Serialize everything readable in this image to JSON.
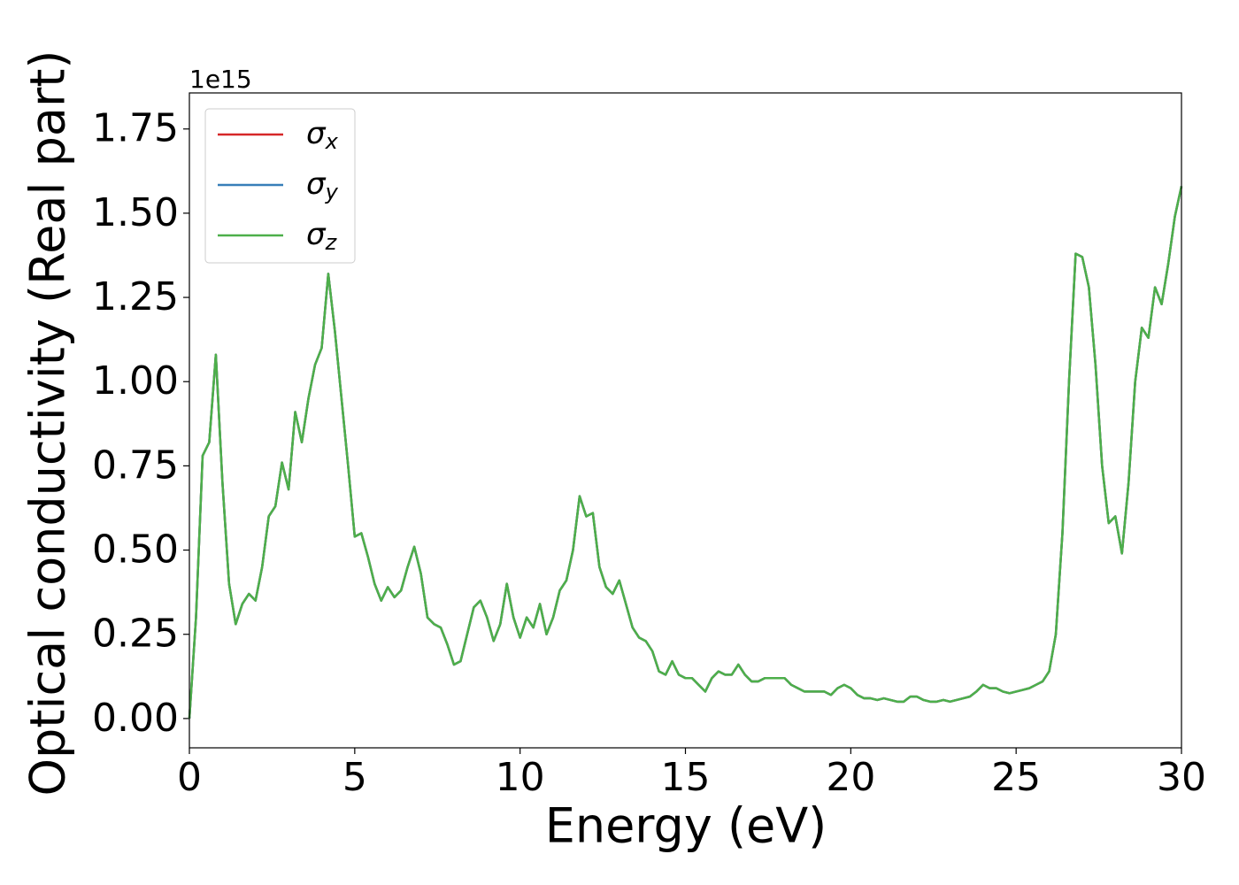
{
  "chart_data": {
    "type": "line",
    "x_label": "Energy (eV)",
    "y_label": "Optical conductivity (Real part)",
    "offset_label": "1e15",
    "xlim": [
      0,
      30
    ],
    "xticks": [
      0,
      5,
      10,
      15,
      20,
      25,
      30
    ],
    "ylim": [
      -0.087,
      1.857
    ],
    "yticks": [
      {
        "value": 0,
        "label": "0.00"
      },
      {
        "value": 0.25,
        "label": "0.25"
      },
      {
        "value": 0.5,
        "label": "0.50"
      },
      {
        "value": 0.75,
        "label": "0.75"
      },
      {
        "value": 1,
        "label": "1.00"
      },
      {
        "value": 1.25,
        "label": "1.25"
      },
      {
        "value": 1.5,
        "label": "1.50"
      },
      {
        "value": 1.75,
        "label": "1.75"
      }
    ],
    "legend": "upper left",
    "x": [
      0,
      0.2,
      0.4,
      0.6,
      0.8,
      1,
      1.2,
      1.4,
      1.6,
      1.8,
      2,
      2.2,
      2.4,
      2.6,
      2.8,
      3,
      3.2,
      3.4,
      3.6,
      3.8,
      4,
      4.2,
      4.4,
      4.6,
      4.8,
      5,
      5.2,
      5.4,
      5.6,
      5.8,
      6,
      6.2,
      6.4,
      6.6,
      6.8,
      7,
      7.2,
      7.4,
      7.6,
      7.8,
      8,
      8.2,
      8.4,
      8.6,
      8.8,
      9,
      9.2,
      9.4,
      9.6,
      9.8,
      10,
      10.2,
      10.4,
      10.6,
      10.8,
      11,
      11.2,
      11.4,
      11.6,
      11.8,
      12,
      12.2,
      12.4,
      12.6,
      12.8,
      13,
      13.2,
      13.4,
      13.6,
      13.8,
      14,
      14.2,
      14.4,
      14.6,
      14.8,
      15,
      15.2,
      15.4,
      15.6,
      15.8,
      16,
      16.2,
      16.4,
      16.6,
      16.8,
      17,
      17.2,
      17.4,
      17.6,
      17.8,
      18,
      18.2,
      18.4,
      18.6,
      18.8,
      19,
      19.2,
      19.4,
      19.6,
      19.8,
      20,
      20.2,
      20.4,
      20.6,
      20.8,
      21,
      21.2,
      21.4,
      21.6,
      21.8,
      22,
      22.2,
      22.4,
      22.6,
      22.8,
      23,
      23.2,
      23.4,
      23.6,
      23.8,
      24,
      24.2,
      24.4,
      24.6,
      24.8,
      25,
      25.2,
      25.4,
      25.6,
      25.8,
      26,
      26.2,
      26.4,
      26.6,
      26.8,
      27,
      27.2,
      27.4,
      27.6,
      27.8,
      28,
      28.2,
      28.4,
      28.6,
      28.8,
      29,
      29.2,
      29.4,
      29.6,
      29.8,
      30
    ],
    "series": [
      {
        "name": "σx",
        "color": "#d62728",
        "values": [
          0,
          0.3,
          0.78,
          0.82,
          1.08,
          0.7,
          0.4,
          0.28,
          0.34,
          0.37,
          0.35,
          0.45,
          0.6,
          0.63,
          0.76,
          0.68,
          0.91,
          0.82,
          0.95,
          1.05,
          1.1,
          1.32,
          1.15,
          0.95,
          0.75,
          0.54,
          0.55,
          0.48,
          0.4,
          0.35,
          0.39,
          0.36,
          0.38,
          0.45,
          0.51,
          0.43,
          0.3,
          0.28,
          0.27,
          0.22,
          0.16,
          0.17,
          0.25,
          0.33,
          0.35,
          0.3,
          0.23,
          0.28,
          0.4,
          0.3,
          0.24,
          0.3,
          0.27,
          0.34,
          0.25,
          0.3,
          0.38,
          0.41,
          0.5,
          0.66,
          0.6,
          0.61,
          0.45,
          0.39,
          0.37,
          0.41,
          0.34,
          0.27,
          0.24,
          0.23,
          0.2,
          0.14,
          0.13,
          0.17,
          0.13,
          0.12,
          0.12,
          0.1,
          0.08,
          0.12,
          0.14,
          0.13,
          0.13,
          0.16,
          0.13,
          0.11,
          0.11,
          0.12,
          0.12,
          0.12,
          0.12,
          0.1,
          0.09,
          0.08,
          0.08,
          0.08,
          0.08,
          0.07,
          0.09,
          0.1,
          0.09,
          0.07,
          0.06,
          0.06,
          0.055,
          0.06,
          0.055,
          0.05,
          0.05,
          0.065,
          0.065,
          0.055,
          0.05,
          0.05,
          0.055,
          0.05,
          0.055,
          0.06,
          0.065,
          0.08,
          0.1,
          0.09,
          0.09,
          0.08,
          0.075,
          0.08,
          0.085,
          0.09,
          0.1,
          0.11,
          0.14,
          0.25,
          0.55,
          1.0,
          1.38,
          1.37,
          1.28,
          1.05,
          0.75,
          0.58,
          0.6,
          0.49,
          0.7,
          1.0,
          1.16,
          1.13,
          1.28,
          1.23,
          1.35,
          1.49,
          1.58
        ]
      },
      {
        "name": "σy",
        "color": "#377eb8",
        "values": [
          0,
          0.3,
          0.78,
          0.82,
          1.08,
          0.7,
          0.4,
          0.28,
          0.34,
          0.37,
          0.35,
          0.45,
          0.6,
          0.63,
          0.76,
          0.68,
          0.91,
          0.82,
          0.95,
          1.05,
          1.1,
          1.32,
          1.15,
          0.95,
          0.75,
          0.54,
          0.55,
          0.48,
          0.4,
          0.35,
          0.39,
          0.36,
          0.38,
          0.45,
          0.51,
          0.43,
          0.3,
          0.28,
          0.27,
          0.22,
          0.16,
          0.17,
          0.25,
          0.33,
          0.35,
          0.3,
          0.23,
          0.28,
          0.4,
          0.3,
          0.24,
          0.3,
          0.27,
          0.34,
          0.25,
          0.3,
          0.38,
          0.41,
          0.5,
          0.66,
          0.6,
          0.61,
          0.45,
          0.39,
          0.37,
          0.41,
          0.34,
          0.27,
          0.24,
          0.23,
          0.2,
          0.14,
          0.13,
          0.17,
          0.13,
          0.12,
          0.12,
          0.1,
          0.08,
          0.12,
          0.14,
          0.13,
          0.13,
          0.16,
          0.13,
          0.11,
          0.11,
          0.12,
          0.12,
          0.12,
          0.12,
          0.1,
          0.09,
          0.08,
          0.08,
          0.08,
          0.08,
          0.07,
          0.09,
          0.1,
          0.09,
          0.07,
          0.06,
          0.06,
          0.055,
          0.06,
          0.055,
          0.05,
          0.05,
          0.065,
          0.065,
          0.055,
          0.05,
          0.05,
          0.055,
          0.05,
          0.055,
          0.06,
          0.065,
          0.08,
          0.1,
          0.09,
          0.09,
          0.08,
          0.075,
          0.08,
          0.085,
          0.09,
          0.1,
          0.11,
          0.14,
          0.25,
          0.55,
          1.0,
          1.38,
          1.37,
          1.28,
          1.05,
          0.75,
          0.58,
          0.6,
          0.49,
          0.7,
          1.0,
          1.16,
          1.13,
          1.28,
          1.23,
          1.35,
          1.49,
          1.58
        ]
      },
      {
        "name": "σz",
        "color": "#4daf4a",
        "values": [
          0,
          0.3,
          0.78,
          0.82,
          1.08,
          0.7,
          0.4,
          0.28,
          0.34,
          0.37,
          0.35,
          0.45,
          0.6,
          0.63,
          0.76,
          0.68,
          0.91,
          0.82,
          0.95,
          1.05,
          1.1,
          1.32,
          1.15,
          0.95,
          0.75,
          0.54,
          0.55,
          0.48,
          0.4,
          0.35,
          0.39,
          0.36,
          0.38,
          0.45,
          0.51,
          0.43,
          0.3,
          0.28,
          0.27,
          0.22,
          0.16,
          0.17,
          0.25,
          0.33,
          0.35,
          0.3,
          0.23,
          0.28,
          0.4,
          0.3,
          0.24,
          0.3,
          0.27,
          0.34,
          0.25,
          0.3,
          0.38,
          0.41,
          0.5,
          0.66,
          0.6,
          0.61,
          0.45,
          0.39,
          0.37,
          0.41,
          0.34,
          0.27,
          0.24,
          0.23,
          0.2,
          0.14,
          0.13,
          0.17,
          0.13,
          0.12,
          0.12,
          0.1,
          0.08,
          0.12,
          0.14,
          0.13,
          0.13,
          0.16,
          0.13,
          0.11,
          0.11,
          0.12,
          0.12,
          0.12,
          0.12,
          0.1,
          0.09,
          0.08,
          0.08,
          0.08,
          0.08,
          0.07,
          0.09,
          0.1,
          0.09,
          0.07,
          0.06,
          0.06,
          0.055,
          0.06,
          0.055,
          0.05,
          0.05,
          0.065,
          0.065,
          0.055,
          0.05,
          0.05,
          0.055,
          0.05,
          0.055,
          0.06,
          0.065,
          0.08,
          0.1,
          0.09,
          0.09,
          0.08,
          0.075,
          0.08,
          0.085,
          0.09,
          0.1,
          0.11,
          0.14,
          0.25,
          0.55,
          1.0,
          1.38,
          1.37,
          1.28,
          1.05,
          0.75,
          0.58,
          0.6,
          0.49,
          0.7,
          1.0,
          1.16,
          1.13,
          1.28,
          1.23,
          1.35,
          1.49,
          1.58
        ]
      }
    ]
  }
}
